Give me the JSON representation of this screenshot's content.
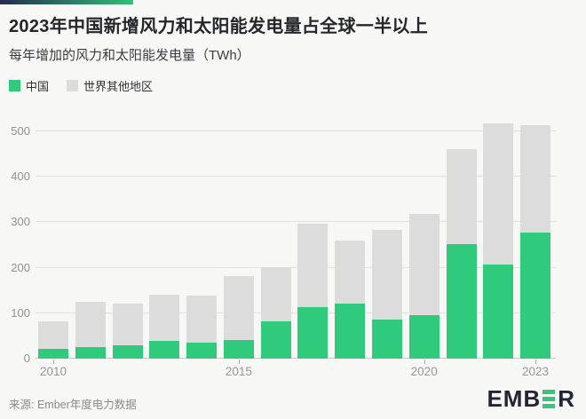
{
  "header": {
    "title": "2023年中国新增风力和太阳能发电量占全球一半以上",
    "subtitle": "每年增加的风力和太阳能发电量（TWh）"
  },
  "legend": [
    {
      "label": "中国",
      "color": "#2fca7c"
    },
    {
      "label": "世界其他地区",
      "color": "#dcdcdc"
    }
  ],
  "accent_bar": {
    "from": "#232c4e",
    "to": "#36bf78"
  },
  "chart_data": {
    "type": "bar",
    "stacked": true,
    "title": "2023年中国新增风力和太阳能发电量占全球一半以上",
    "subtitle": "每年增加的风力和太阳能发电量（TWh）",
    "unit": "TWh",
    "categories": [
      "2010",
      "2011",
      "2012",
      "2013",
      "2014",
      "2015",
      "2016",
      "2017",
      "2018",
      "2019",
      "2020",
      "2021",
      "2022",
      "2023"
    ],
    "series": [
      {
        "name": "中国",
        "color": "#2fca7c",
        "values": [
          22,
          26,
          30,
          40,
          36,
          42,
          83,
          114,
          121,
          86,
          96,
          253,
          207,
          278
        ]
      },
      {
        "name": "世界其他地区",
        "color": "#dcdcdc",
        "values": [
          60,
          99,
          92,
          100,
          102,
          140,
          118,
          182,
          138,
          197,
          223,
          208,
          310,
          235
        ]
      }
    ],
    "totals": [
      82,
      125,
      122,
      140,
      138,
      182,
      201,
      296,
      259,
      283,
      319,
      461,
      517,
      513
    ],
    "ylim": [
      0,
      500
    ],
    "yticks": [
      0,
      100,
      200,
      300,
      400,
      500
    ],
    "xticks": [
      "2010",
      "2015",
      "2020",
      "2023"
    ],
    "grid": true,
    "legend_position": "top-left"
  },
  "footer": {
    "source": "来源: Ember年度电力数据",
    "logo": {
      "left": "EMB",
      "right": "R",
      "mark_color": "#35c77c",
      "text_color": "#222634"
    }
  }
}
